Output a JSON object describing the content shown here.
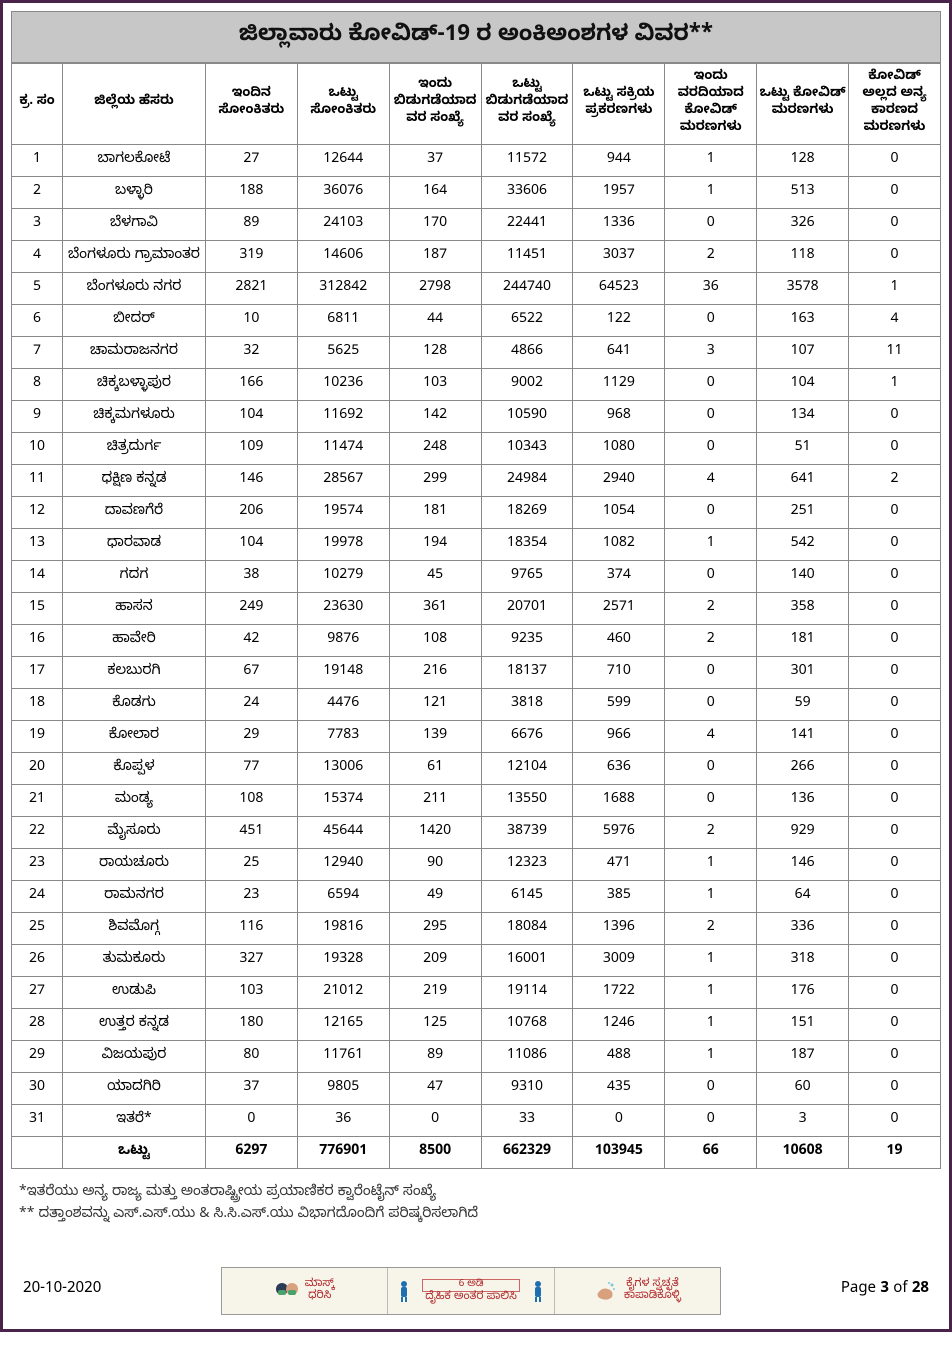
{
  "title": "ಜಿಲ್ಲಾವಾರು ಕೋವಿಡ್‑19 ರ ಅಂಕಿಅಂಶಗಳ ವಿವರ**",
  "columns": [
    "ಕ್ರ. ಸಂ",
    "ಜಿಲ್ಲೆಯ ಹೆಸರು",
    "ಇಂದಿನ ಸೋಂಕಿತರು",
    "ಒಟ್ಟು ಸೋಂಕಿತರು",
    "ಇಂದು ಬಿಡುಗಡೆಯಾದವರ ಸಂಖ್ಯೆ",
    "ಒಟ್ಟು ಬಿಡುಗಡೆಯಾದವರ ಸಂಖ್ಯೆ",
    "ಒಟ್ಟು ಸಕ್ರಿಯ ಪ್ರಕರಣಗಳು",
    "ಇಂದು ವರದಿಯಾದ ಕೋವಿಡ್ ಮರಣಗಳು",
    "ಒಟ್ಟು ಕೋವಿಡ್ ಮರಣಗಳು",
    "ಕೋವಿಡ್ ಅಲ್ಲದ ಅನ್ಯ ಕಾರಣದ ಮರಣಗಳು"
  ],
  "rows": [
    [
      "1",
      "ಬಾಗಲಕೋಟೆ",
      "27",
      "12644",
      "37",
      "11572",
      "944",
      "1",
      "128",
      "0"
    ],
    [
      "2",
      "ಬಳ್ಳಾರಿ",
      "188",
      "36076",
      "164",
      "33606",
      "1957",
      "1",
      "513",
      "0"
    ],
    [
      "3",
      "ಬೆಳಗಾವಿ",
      "89",
      "24103",
      "170",
      "22441",
      "1336",
      "0",
      "326",
      "0"
    ],
    [
      "4",
      "ಬೆಂಗಳೂರು ಗ್ರಾಮಾಂತರ",
      "319",
      "14606",
      "187",
      "11451",
      "3037",
      "2",
      "118",
      "0"
    ],
    [
      "5",
      "ಬೆಂಗಳೂರು ನಗರ",
      "2821",
      "312842",
      "2798",
      "244740",
      "64523",
      "36",
      "3578",
      "1"
    ],
    [
      "6",
      "ಬೀದರ್",
      "10",
      "6811",
      "44",
      "6522",
      "122",
      "0",
      "163",
      "4"
    ],
    [
      "7",
      "ಚಾಮರಾಜನಗರ",
      "32",
      "5625",
      "128",
      "4866",
      "641",
      "3",
      "107",
      "11"
    ],
    [
      "8",
      "ಚಿಕ್ಕಬಳ್ಳಾಪುರ",
      "166",
      "10236",
      "103",
      "9002",
      "1129",
      "0",
      "104",
      "1"
    ],
    [
      "9",
      "ಚಿಕ್ಕಮಗಳೂರು",
      "104",
      "11692",
      "142",
      "10590",
      "968",
      "0",
      "134",
      "0"
    ],
    [
      "10",
      "ಚಿತ್ರದುರ್ಗ",
      "109",
      "11474",
      "248",
      "10343",
      "1080",
      "0",
      "51",
      "0"
    ],
    [
      "11",
      "ಧಕ್ಷಿಣ ಕನ್ನಡ",
      "146",
      "28567",
      "299",
      "24984",
      "2940",
      "4",
      "641",
      "2"
    ],
    [
      "12",
      "ದಾವಣಗೆರೆ",
      "206",
      "19574",
      "181",
      "18269",
      "1054",
      "0",
      "251",
      "0"
    ],
    [
      "13",
      "ಧಾರವಾಡ",
      "104",
      "19978",
      "194",
      "18354",
      "1082",
      "1",
      "542",
      "0"
    ],
    [
      "14",
      "ಗದಗ",
      "38",
      "10279",
      "45",
      "9765",
      "374",
      "0",
      "140",
      "0"
    ],
    [
      "15",
      "ಹಾಸನ",
      "249",
      "23630",
      "361",
      "20701",
      "2571",
      "2",
      "358",
      "0"
    ],
    [
      "16",
      "ಹಾವೇರಿ",
      "42",
      "9876",
      "108",
      "9235",
      "460",
      "2",
      "181",
      "0"
    ],
    [
      "17",
      "ಕಲಬುರಗಿ",
      "67",
      "19148",
      "216",
      "18137",
      "710",
      "0",
      "301",
      "0"
    ],
    [
      "18",
      "ಕೊಡಗು",
      "24",
      "4476",
      "121",
      "3818",
      "599",
      "0",
      "59",
      "0"
    ],
    [
      "19",
      "ಕೋಲಾರ",
      "29",
      "7783",
      "139",
      "6676",
      "966",
      "4",
      "141",
      "0"
    ],
    [
      "20",
      "ಕೊಪ್ಪಳ",
      "77",
      "13006",
      "61",
      "12104",
      "636",
      "0",
      "266",
      "0"
    ],
    [
      "21",
      "ಮಂಡ್ಯ",
      "108",
      "15374",
      "211",
      "13550",
      "1688",
      "0",
      "136",
      "0"
    ],
    [
      "22",
      "ಮೈಸೂರು",
      "451",
      "45644",
      "1420",
      "38739",
      "5976",
      "2",
      "929",
      "0"
    ],
    [
      "23",
      "ರಾಯಚೂರು",
      "25",
      "12940",
      "90",
      "12323",
      "471",
      "1",
      "146",
      "0"
    ],
    [
      "24",
      "ರಾಮನಗರ",
      "23",
      "6594",
      "49",
      "6145",
      "385",
      "1",
      "64",
      "0"
    ],
    [
      "25",
      "ಶಿವಮೊಗ್ಗ",
      "116",
      "19816",
      "295",
      "18084",
      "1396",
      "2",
      "336",
      "0"
    ],
    [
      "26",
      "ತುಮಕೂರು",
      "327",
      "19328",
      "209",
      "16001",
      "3009",
      "1",
      "318",
      "0"
    ],
    [
      "27",
      "ಉಡುಪಿ",
      "103",
      "21012",
      "219",
      "19114",
      "1722",
      "1",
      "176",
      "0"
    ],
    [
      "28",
      "ಉತ್ತರ ಕನ್ನಡ",
      "180",
      "12165",
      "125",
      "10768",
      "1246",
      "1",
      "151",
      "0"
    ],
    [
      "29",
      "ವಿಜಯಪುರ",
      "80",
      "11761",
      "89",
      "11086",
      "488",
      "1",
      "187",
      "0"
    ],
    [
      "30",
      "ಯಾದಗಿರಿ",
      "37",
      "9805",
      "47",
      "9310",
      "435",
      "0",
      "60",
      "0"
    ],
    [
      "31",
      "ಇತರೆ*",
      "0",
      "36",
      "0",
      "33",
      "0",
      "0",
      "3",
      "0"
    ]
  ],
  "total": [
    "",
    "ಒಟ್ಟು",
    "6297",
    "776901",
    "8500",
    "662329",
    "103945",
    "66",
    "10608",
    "19"
  ],
  "footnote1": "*ಇತರೆಯು ಅನ್ಯ ರಾಜ್ಯ ಮತ್ತು ಅಂತರಾಷ್ಟ್ರೀಯ ಪ್ರಯಾಣಿಕರ ಕ್ವಾರೆಂಟೈನ್ ಸಂಖ್ಯೆ",
  "footnote2": "** ದತ್ತಾಂಶವನ್ನು ಎಸ್.ಎಸ್.ಯು & ಸಿ.ಸಿ.ಎಸ್.ಯು ವಿಭಾಗದೊಂದಿಗೆ ಪರಿಷ್ಕರಿಸಲಾಗಿದೆ",
  "banner": {
    "mask_line1": "ಮಾಸ್ಕ್",
    "mask_line2": "ಧರಿಸಿ",
    "dist_top": "6 ಅಡಿ",
    "dist_bottom": "ದೈಹಿಕ ಅಂತರ ಪಾಲಿಸಿ",
    "hands_line1": "ಕೈಗಳ ಸ್ವಚ್ಛತೆ",
    "hands_line2": "ಕಾಪಾಡಿಕೊಳ್ಳಿ"
  },
  "date": "20-10-2020",
  "page_label_prefix": "Page ",
  "page_current": "3",
  "page_of": " of ",
  "page_total": "28",
  "colors": {
    "page_border": "#4a234a",
    "title_bg": "#c7c7c7",
    "cell_border": "#888888",
    "banner_bg": "#f7f4ea",
    "banner_text": "#b02a2a"
  }
}
